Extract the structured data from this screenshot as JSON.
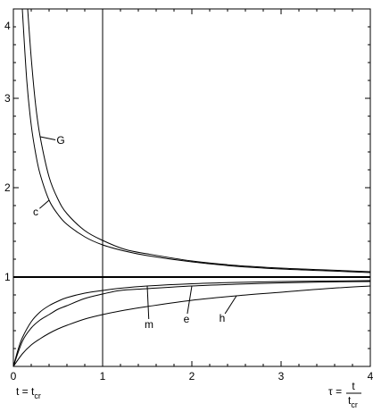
{
  "chart_data": {
    "type": "line",
    "xlim": [
      0,
      4
    ],
    "ylim": [
      0,
      4
    ],
    "x_ticks": [
      "0",
      "1",
      "2",
      "3",
      "4"
    ],
    "y_ticks": [
      "1",
      "2",
      "3",
      "4"
    ],
    "xlabel_left": "t = t",
    "xlabel_left_sub": "cr",
    "xlabel_right_lhs": "τ =",
    "xlabel_right_num": "t",
    "xlabel_right_den": "t",
    "xlabel_right_den_sub": "cr",
    "vertical_reference_x": 1,
    "horizontal_reference_y": 1,
    "grid": false,
    "series": [
      {
        "name": "G",
        "label_x": 0.53,
        "label_y": 2.52,
        "x": [
          0.16,
          0.2,
          0.25,
          0.3,
          0.4,
          0.5,
          0.6,
          0.8,
          1.0,
          1.25,
          1.5,
          2.0,
          2.5,
          3.0,
          3.5,
          4.0
        ],
        "y": [
          4.0,
          3.45,
          2.92,
          2.57,
          2.12,
          1.87,
          1.71,
          1.52,
          1.41,
          1.31,
          1.26,
          1.18,
          1.13,
          1.1,
          1.08,
          1.06
        ]
      },
      {
        "name": "c",
        "label_x": 0.25,
        "label_y": 1.72,
        "x": [
          0.1,
          0.15,
          0.2,
          0.25,
          0.3,
          0.4,
          0.5,
          0.6,
          0.8,
          1.0,
          1.25,
          1.5,
          2.0,
          2.5,
          3.0,
          3.5,
          4.0
        ],
        "y": [
          4.0,
          3.2,
          2.7,
          2.38,
          2.15,
          1.86,
          1.7,
          1.59,
          1.45,
          1.36,
          1.29,
          1.24,
          1.17,
          1.12,
          1.09,
          1.07,
          1.05
        ]
      },
      {
        "name": "m",
        "label_x": 1.52,
        "label_y": 0.46,
        "x": [
          0.0,
          0.05,
          0.1,
          0.2,
          0.3,
          0.4,
          0.5,
          0.6,
          0.8,
          1.0,
          1.2,
          1.5,
          2.0,
          2.5,
          3.0,
          3.5,
          4.0
        ],
        "y": [
          0.0,
          0.18,
          0.32,
          0.5,
          0.61,
          0.68,
          0.73,
          0.77,
          0.82,
          0.85,
          0.875,
          0.9,
          0.925,
          0.94,
          0.95,
          0.955,
          0.96
        ]
      },
      {
        "name": "e",
        "label_x": 1.94,
        "label_y": 0.52,
        "x": [
          0.0,
          0.1,
          0.2,
          0.3,
          0.4,
          0.5,
          0.6,
          0.8,
          1.0,
          1.2,
          1.5,
          2.0,
          2.5,
          3.0,
          3.5,
          4.0
        ],
        "y": [
          0.0,
          0.28,
          0.43,
          0.52,
          0.58,
          0.64,
          0.68,
          0.76,
          0.81,
          0.85,
          0.87,
          0.9,
          0.92,
          0.935,
          0.945,
          0.95
        ]
      },
      {
        "name": "h",
        "label_x": 2.34,
        "label_y": 0.53,
        "x": [
          0.0,
          0.1,
          0.2,
          0.3,
          0.4,
          0.5,
          0.6,
          0.8,
          1.0,
          1.25,
          1.5,
          2.0,
          2.5,
          3.0,
          3.5,
          4.0
        ],
        "y": [
          0.0,
          0.14,
          0.24,
          0.31,
          0.37,
          0.42,
          0.46,
          0.53,
          0.58,
          0.63,
          0.67,
          0.74,
          0.79,
          0.83,
          0.87,
          0.9
        ]
      }
    ]
  }
}
